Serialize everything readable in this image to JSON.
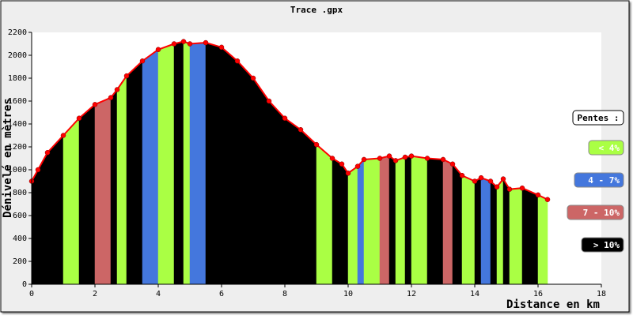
{
  "chart_data": {
    "type": "area",
    "title": "Trace .gpx",
    "x_label": "Distance en km",
    "y_label": "Dénivelé en mètres",
    "x": [
      0,
      0.2,
      0.5,
      1,
      1.5,
      2,
      2.5,
      2.7,
      3,
      3.5,
      4,
      4.5,
      4.8,
      5,
      5.5,
      6,
      6.5,
      7,
      7.5,
      8,
      8.5,
      9,
      9.5,
      9.8,
      10,
      10.3,
      10.5,
      11,
      11.3,
      11.5,
      11.8,
      12,
      12.5,
      13,
      13.3,
      13.6,
      14,
      14.2,
      14.5,
      14.7,
      14.9,
      15.1,
      15.5,
      16,
      16.3
    ],
    "y": [
      900,
      1000,
      1150,
      1300,
      1450,
      1570,
      1630,
      1700,
      1820,
      1950,
      2050,
      2100,
      2120,
      2100,
      2110,
      2070,
      1950,
      1800,
      1600,
      1450,
      1350,
      1220,
      1100,
      1050,
      970,
      1030,
      1090,
      1100,
      1120,
      1080,
      1110,
      1120,
      1100,
      1090,
      1050,
      950,
      900,
      930,
      900,
      850,
      920,
      830,
      840,
      780,
      740
    ],
    "point_colors": [
      "#000000",
      "#000000",
      "#000000",
      "#aaff44",
      "#000000",
      "#cc6666",
      "#000000",
      "#aaff44",
      "#000000",
      "#4477dd",
      "#aaff44",
      "#000000",
      "#aaff44",
      "#4477dd",
      "#000000",
      "#000000",
      "#000000",
      "#000000",
      "#000000",
      "#000000",
      "#000000",
      "#aaff44",
      "#000000",
      "#000000",
      "#aaff44",
      "#4477dd",
      "#aaff44",
      "#cc6666",
      "#000000",
      "#aaff44",
      "#000000",
      "#aaff44",
      "#000000",
      "#cc6666",
      "#000000",
      "#aaff44",
      "#000000",
      "#4477dd",
      "#000000",
      "#aaff44",
      "#000000",
      "#aaff44",
      "#000000",
      "#aaff44"
    ],
    "line_color": "#ff0000",
    "xlim": [
      0,
      18
    ],
    "xticks": [
      0,
      2,
      4,
      6,
      8,
      10,
      12,
      14,
      16,
      18
    ],
    "ylim": [
      0,
      2200
    ],
    "yticks": [
      0,
      200,
      400,
      600,
      800,
      1000,
      1200,
      1400,
      1600,
      1800,
      2000,
      2200
    ],
    "legend_title": "Pentes :",
    "legend": [
      {
        "name": "< 4%",
        "color": "#aaff44"
      },
      {
        "name": "4 - 7%",
        "color": "#4477dd"
      },
      {
        "name": "7 - 10%",
        "color": "#cc6666"
      },
      {
        "name": "> 10%",
        "color": "#000000"
      }
    ]
  }
}
